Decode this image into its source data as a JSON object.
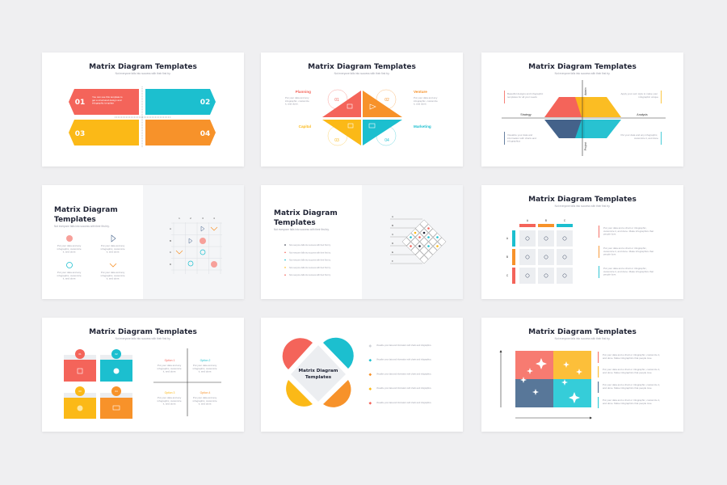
{
  "colors": {
    "red": "#f4645a",
    "teal": "#1cbfcf",
    "yellow": "#fbb917",
    "orange": "#f7922a",
    "navy": "#44628a",
    "grey": "#eceef1"
  },
  "common": {
    "title": "Matrix Diagram Templates",
    "title_line1": "Matrix Diagram",
    "title_line2": "Templates",
    "subtitle": "Not everyone falls into success with their first try."
  },
  "slide1": {
    "numbers": [
      "01",
      "02",
      "03",
      "04"
    ],
    "body": "You can use this template to get a structured design and infographic template"
  },
  "slide2": {
    "numbers": [
      "01",
      "02",
      "03",
      "04"
    ],
    "labels": [
      "Planning",
      "Venture",
      "Capital",
      "Marketing"
    ],
    "body": "Put your data and any infographic, customize it, and done."
  },
  "slide3": {
    "axes": [
      "Strategy",
      "Analysis",
      "Admin",
      "Project"
    ],
    "notes": [
      "Beautiful designs and infographic templates for all your needs",
      "Apply your own style to make your infographic unique",
      "Visualize your data and information with charts and infographics",
      "Put your data and any infographic, customize it, and done"
    ]
  },
  "slide4": {
    "columns": [
      "1",
      "2",
      "3",
      "4"
    ],
    "rows": [
      "A",
      "B",
      "C",
      "D"
    ],
    "body": "Put your data and any infographic, customize it, and done."
  },
  "slide5": {
    "rows": [
      "A",
      "B",
      "C",
      "D",
      "E",
      "F"
    ],
    "bullet": "Not everyone falls into success with their first try."
  },
  "slide6": {
    "columns": [
      "A",
      "B",
      "C"
    ],
    "rows": [
      "A",
      "B",
      "C"
    ],
    "body": "Put your data and a chart or infographic, customize it, and done. Make infographics that people love."
  },
  "slide7": {
    "numbers": [
      "01",
      "02",
      "03",
      "04"
    ],
    "options": [
      "Option 1",
      "Option 2",
      "Option 3",
      "Option 4"
    ],
    "body": "Put your data and any infographic, customize it, and done."
  },
  "slide8": {
    "center_line1": "Matrix Diagram",
    "center_line2": "Templates",
    "body": "Visualize your data and information with charts and infographics."
  },
  "slide9": {
    "body": "Put your data and a chart or infographic, customize it, and done. Make infographics that people love."
  }
}
